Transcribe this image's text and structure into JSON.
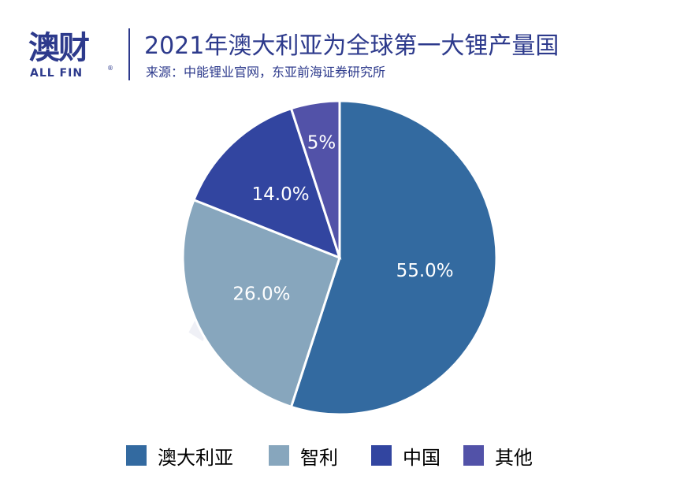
{
  "logo": {
    "text": "澳财",
    "sub": "ALL FIN",
    "reg": "®"
  },
  "header": {
    "title": "2021年澳大利亚为全球第一大锂产量国",
    "source": "来源：中能锂业官网，东亚前海证券研究所"
  },
  "watermark": {
    "text": "澳财",
    "sub": "ALL FIN"
  },
  "chart_data": {
    "type": "pie",
    "title": "2021年澳大利亚为全球第一大锂产量国",
    "categories": [
      "澳大利亚",
      "智利",
      "中国",
      "其他"
    ],
    "values": [
      55.0,
      26.0,
      14.0,
      5.0
    ],
    "data_labels": [
      "55.0%",
      "26.0%",
      "14.0%",
      "5%"
    ],
    "colors": [
      "#336aa0",
      "#87a6bd",
      "#3245a0",
      "#5252a8"
    ],
    "legend_position": "bottom"
  }
}
